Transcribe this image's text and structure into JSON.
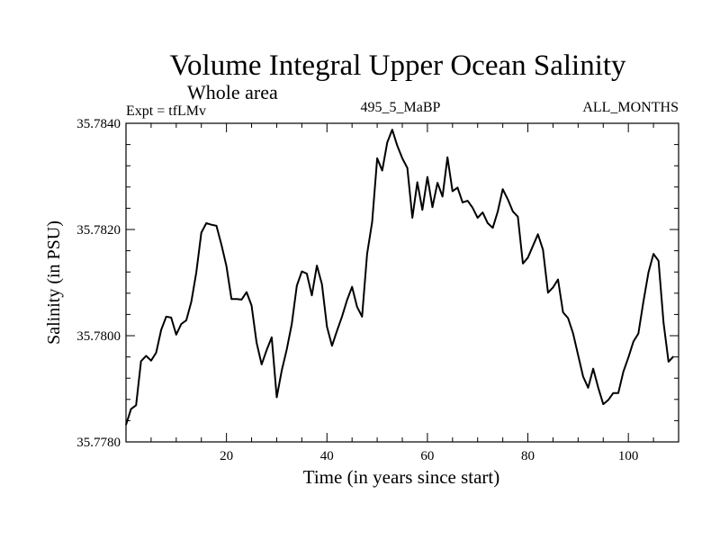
{
  "chart_data": {
    "type": "line",
    "title": "Volume Integral Upper Ocean Salinity",
    "subtitle": "Whole area",
    "left_label": "Expt = tfLMv",
    "center_label": "495_5_MaBP",
    "right_label": "ALL_MONTHS",
    "xlabel": "Time (in years since start)",
    "ylabel": "Salinity (in PSU)",
    "xlim": [
      0,
      110
    ],
    "ylim": [
      35.778,
      35.784
    ],
    "x_ticks": [
      {
        "value": 20,
        "label": "20"
      },
      {
        "value": 40,
        "label": "40"
      },
      {
        "value": 60,
        "label": "60"
      },
      {
        "value": 80,
        "label": "80"
      },
      {
        "value": 100,
        "label": "100"
      }
    ],
    "y_ticks": [
      {
        "value": 35.778,
        "label": "35.7780"
      },
      {
        "value": 35.78,
        "label": "35.7800"
      },
      {
        "value": 35.782,
        "label": "35.7820"
      },
      {
        "value": 35.784,
        "label": "35.7840"
      }
    ],
    "series": [
      {
        "name": "salinity",
        "color": "#000000",
        "points": [
          [
            0,
            35.77832
          ],
          [
            1,
            35.77862
          ],
          [
            2,
            35.77869
          ],
          [
            3,
            35.77952
          ],
          [
            4,
            35.77962
          ],
          [
            5,
            35.77953
          ],
          [
            6,
            35.77968
          ],
          [
            7,
            35.78011
          ],
          [
            8,
            35.78036
          ],
          [
            9,
            35.78034
          ],
          [
            10,
            35.78002
          ],
          [
            11,
            35.78022
          ],
          [
            12,
            35.78029
          ],
          [
            13,
            35.78064
          ],
          [
            14,
            35.78119
          ],
          [
            15,
            35.78194
          ],
          [
            16,
            35.78212
          ],
          [
            17,
            35.78209
          ],
          [
            18,
            35.78207
          ],
          [
            19,
            35.78171
          ],
          [
            20,
            35.78131
          ],
          [
            21,
            35.78069
          ],
          [
            22,
            35.78069
          ],
          [
            23,
            35.78068
          ],
          [
            24,
            35.78082
          ],
          [
            25,
            35.78057
          ],
          [
            26,
            35.77987
          ],
          [
            27,
            35.77946
          ],
          [
            28,
            35.77973
          ],
          [
            29,
            35.77997
          ],
          [
            30,
            35.77884
          ],
          [
            31,
            35.77934
          ],
          [
            32,
            35.77974
          ],
          [
            33,
            35.78022
          ],
          [
            34,
            35.78094
          ],
          [
            35,
            35.78121
          ],
          [
            36,
            35.78117
          ],
          [
            37,
            35.78076
          ],
          [
            38,
            35.78132
          ],
          [
            39,
            35.78097
          ],
          [
            40,
            35.78017
          ],
          [
            41,
            35.77981
          ],
          [
            42,
            35.78009
          ],
          [
            43,
            35.78036
          ],
          [
            44,
            35.78067
          ],
          [
            45,
            35.78092
          ],
          [
            46,
            35.78054
          ],
          [
            47,
            35.78036
          ],
          [
            48,
            35.78154
          ],
          [
            49,
            35.78214
          ],
          [
            50,
            35.78334
          ],
          [
            51,
            35.78311
          ],
          [
            52,
            35.78364
          ],
          [
            53,
            35.78388
          ],
          [
            54,
            35.78358
          ],
          [
            55,
            35.78334
          ],
          [
            56,
            35.78316
          ],
          [
            57,
            35.78222
          ],
          [
            58,
            35.78289
          ],
          [
            59,
            35.78237
          ],
          [
            60,
            35.78299
          ],
          [
            61,
            35.78242
          ],
          [
            62,
            35.78288
          ],
          [
            63,
            35.78262
          ],
          [
            64,
            35.78336
          ],
          [
            65,
            35.78272
          ],
          [
            66,
            35.78279
          ],
          [
            67,
            35.78251
          ],
          [
            68,
            35.78254
          ],
          [
            69,
            35.78241
          ],
          [
            70,
            35.78222
          ],
          [
            71,
            35.78232
          ],
          [
            72,
            35.78212
          ],
          [
            73,
            35.78203
          ],
          [
            74,
            35.78234
          ],
          [
            75,
            35.78276
          ],
          [
            76,
            35.78257
          ],
          [
            77,
            35.78234
          ],
          [
            78,
            35.78224
          ],
          [
            79,
            35.78136
          ],
          [
            80,
            35.78147
          ],
          [
            81,
            35.78169
          ],
          [
            82,
            35.78191
          ],
          [
            83,
            35.78162
          ],
          [
            84,
            35.78081
          ],
          [
            85,
            35.78091
          ],
          [
            86,
            35.78106
          ],
          [
            87,
            35.78044
          ],
          [
            88,
            35.78033
          ],
          [
            89,
            35.78004
          ],
          [
            90,
            35.77963
          ],
          [
            91,
            35.77923
          ],
          [
            92,
            35.77902
          ],
          [
            93,
            35.77938
          ],
          [
            94,
            35.77902
          ],
          [
            95,
            35.77871
          ],
          [
            96,
            35.77879
          ],
          [
            97,
            35.77892
          ],
          [
            98,
            35.77892
          ],
          [
            99,
            35.77932
          ],
          [
            100,
            35.77959
          ],
          [
            101,
            35.77989
          ],
          [
            102,
            35.78004
          ],
          [
            103,
            35.78064
          ],
          [
            104,
            35.78119
          ],
          [
            105,
            35.78154
          ],
          [
            106,
            35.78141
          ],
          [
            107,
            35.78024
          ],
          [
            108,
            35.77951
          ],
          [
            109,
            35.77961
          ]
        ]
      }
    ]
  }
}
